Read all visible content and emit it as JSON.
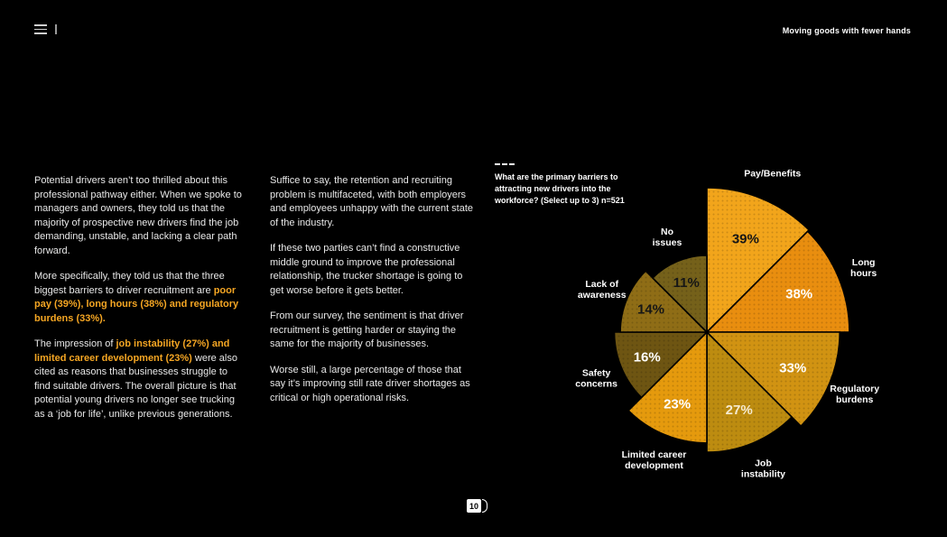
{
  "header": {
    "title_right": "Moving goods with fewer hands"
  },
  "body_text": {
    "column1": [
      [
        {
          "t": "Potential drivers aren’t too thrilled about this professional pathway either. When we spoke to managers and owners, they told us that the majority of prospective new drivers find the job demanding, unstable, and lacking a clear path forward.",
          "hl": false
        }
      ],
      [
        {
          "t": "More specifically, they told us that the three biggest barriers to driver recruitment are ",
          "hl": false
        },
        {
          "t": "poor pay (39%), long hours (38%) and regulatory burdens (33%).",
          "hl": true
        }
      ],
      [
        {
          "t": "The impression of ",
          "hl": false
        },
        {
          "t": "job instability (27%) and limited career development (23%)",
          "hl": true
        },
        {
          "t": " were also cited as reasons that businesses struggle to find suitable drivers. The  overall picture is that potential young drivers no longer see trucking as a ‘job for life’, unlike previous generations.",
          "hl": false
        }
      ]
    ],
    "column2": [
      [
        {
          "t": "Suffice to say, the retention and recruiting problem is multifaceted, with both employers and employees unhappy with the current state of the industry.",
          "hl": false
        }
      ],
      [
        {
          "t": "If these two parties can’t find a constructive middle ground to improve the professional relationship, the trucker shortage is going to get worse before it gets better.",
          "hl": false
        }
      ],
      [
        {
          "t": "From our survey, the sentiment is that driver recruitment is getting harder or staying the same for the majority of businesses.",
          "hl": false
        }
      ],
      [
        {
          "t": "Worse still, a large percentage of those that say it’s improving still rate driver shortages as critical or high operational risks.",
          "hl": false
        }
      ]
    ]
  },
  "chart": {
    "question_lines": [
      "What are the primary barriers to",
      "attracting new drivers into the",
      "workforce? (Select up to 3) n=521"
    ]
  },
  "chart_data": {
    "type": "pie",
    "variant": "polar-area-rose",
    "title": "What are the primary barriers to attracting new drivers into the workforce? (Select up to 3) n=521",
    "sample_size": "n=521",
    "categories": [
      "Pay/Benefits",
      "Long hours",
      "Regulatory burdens",
      "Job instability",
      "Limited career development",
      "Safety concerns",
      "Lack of awareness",
      "No issues"
    ],
    "values": [
      39,
      38,
      33,
      27,
      23,
      16,
      14,
      11
    ],
    "unit": "%",
    "sector_angle_deg": 45,
    "start_at": "north",
    "direction": "clockwise",
    "colors": [
      "#F2A51B",
      "#E98E0F",
      "#D19312",
      "#BD8C10",
      "#E59A0D",
      "#6E5512",
      "#8F6D16",
      "#75611A"
    ],
    "value_label_colors": [
      "#161616",
      "#ffffff",
      "#ffffff",
      "#f5ead0",
      "#ffffff",
      "#ffffff",
      "#161616",
      "#161616"
    ],
    "category_label_lines": [
      [
        "Pay/Benefits"
      ],
      [
        "Long",
        "hours"
      ],
      [
        "Regulatory",
        "burdens"
      ],
      [
        "Job",
        "instability"
      ],
      [
        "Limited career",
        "development"
      ],
      [
        "Safety",
        "concerns"
      ],
      [
        "Lack of",
        "awareness"
      ],
      [
        "No",
        "issues"
      ]
    ]
  },
  "footer": {
    "page_number": "10"
  }
}
